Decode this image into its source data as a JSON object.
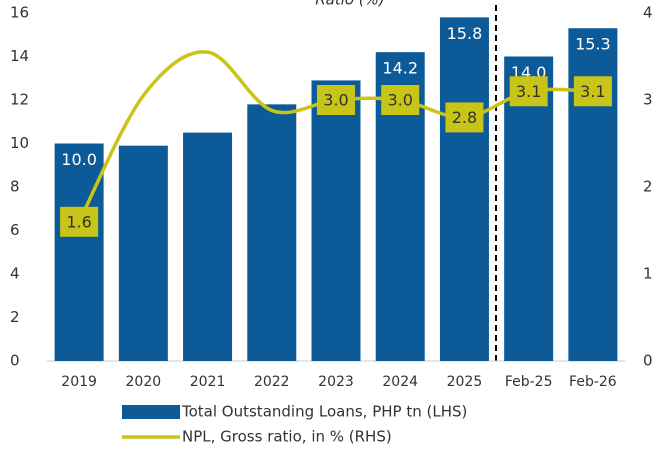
{
  "chart_data": {
    "type": "bar-line",
    "title": "Ratio (%)",
    "categories": [
      "2019",
      "2020",
      "2021",
      "2022",
      "2023",
      "2024",
      "2025",
      "Feb-25",
      "Feb-26"
    ],
    "series": [
      {
        "name": "Total Outstanding Loans, PHP tn (LHS)",
        "type": "bar",
        "axis": "y",
        "color": "#0d5a98",
        "values": [
          10.0,
          9.9,
          10.5,
          11.8,
          12.9,
          14.2,
          15.8,
          14.0,
          15.3
        ],
        "value_labels": [
          "10.0",
          null,
          null,
          null,
          "12.9",
          "14.2",
          "15.8",
          "14.0",
          "15.3"
        ]
      },
      {
        "name": "NPL, Gross ratio, in % (RHS)",
        "type": "line",
        "axis": "y2",
        "color": "#c8c418",
        "values": [
          1.6,
          3.05,
          3.55,
          2.88,
          3.0,
          3.0,
          2.8,
          3.1,
          3.1
        ],
        "value_labels": [
          "1.6",
          null,
          null,
          null,
          "3.0",
          "3.0",
          "2.8",
          "3.1",
          "3.1"
        ]
      }
    ],
    "ylim": [
      0,
      16
    ],
    "yticks": [
      0,
      2,
      4,
      6,
      8,
      10,
      12,
      14,
      16
    ],
    "y2lim": [
      0,
      4
    ],
    "y2ticks": [
      0,
      1,
      2,
      3,
      4
    ],
    "grid": false
  }
}
